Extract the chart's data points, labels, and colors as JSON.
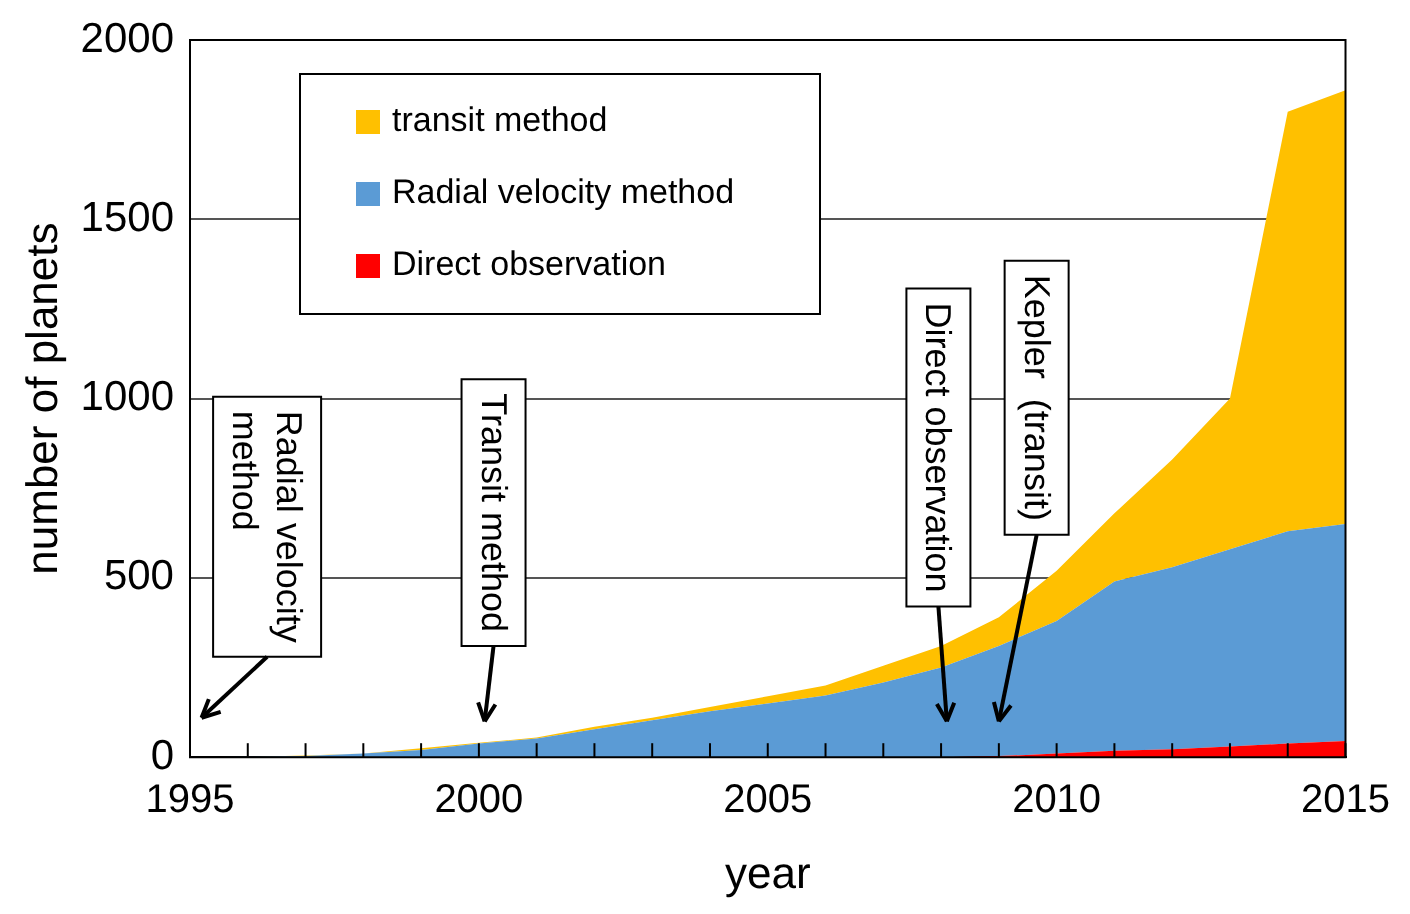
{
  "chart_data": {
    "type": "area",
    "stacked": true,
    "xlabel": "year",
    "ylabel": "number of planets",
    "x": [
      1995,
      1996,
      1997,
      1998,
      1999,
      2000,
      2001,
      2002,
      2003,
      2004,
      2005,
      2006,
      2007,
      2008,
      2009,
      2010,
      2011,
      2012,
      2013,
      2014,
      2015
    ],
    "series": [
      {
        "name": "Direct observation",
        "color": "#ff0000",
        "values": [
          0,
          0,
          0,
          0,
          0,
          0,
          0,
          0,
          0,
          0,
          0,
          0,
          0,
          0,
          3,
          10,
          18,
          22,
          30,
          38,
          45
        ]
      },
      {
        "name": "Radial velocity method",
        "color": "#5b9bd5",
        "values": [
          0,
          1,
          3,
          10,
          20,
          38,
          52,
          78,
          103,
          128,
          150,
          172,
          208,
          250,
          307,
          370,
          472,
          508,
          550,
          592,
          605
        ]
      },
      {
        "name": "transit method",
        "color": "#ffc000",
        "values": [
          0,
          0,
          2,
          0,
          5,
          2,
          3,
          7,
          7,
          12,
          20,
          28,
          47,
          60,
          80,
          140,
          190,
          300,
          420,
          1170,
          1210
        ]
      }
    ],
    "xlim": [
      1995,
      2015
    ],
    "xticks": [
      1995,
      {
        "value": 1996,
        "label": null
      },
      {
        "value": 1997,
        "label": null
      },
      {
        "value": 1998,
        "label": null
      },
      {
        "value": 1999,
        "label": null
      },
      2000,
      {
        "value": 2001,
        "label": null
      },
      {
        "value": 2002,
        "label": null
      },
      {
        "value": 2003,
        "label": null
      },
      {
        "value": 2004,
        "label": null
      },
      2005,
      {
        "value": 2006,
        "label": null
      },
      {
        "value": 2007,
        "label": null
      },
      {
        "value": 2008,
        "label": null
      },
      {
        "value": 2009,
        "label": null
      },
      2010,
      {
        "value": 2011,
        "label": null
      },
      {
        "value": 2012,
        "label": null
      },
      {
        "value": 2013,
        "label": null
      },
      {
        "value": 2014,
        "label": null
      },
      2015
    ],
    "ylim": [
      0,
      2000
    ],
    "yticks": [
      0,
      500,
      1000,
      1500,
      2000
    ],
    "grid": "y",
    "legend": "top left",
    "annotations": [
      "Radial velocity method",
      "Transit method",
      "Direct observation",
      "Kepler  (transit)"
    ]
  }
}
